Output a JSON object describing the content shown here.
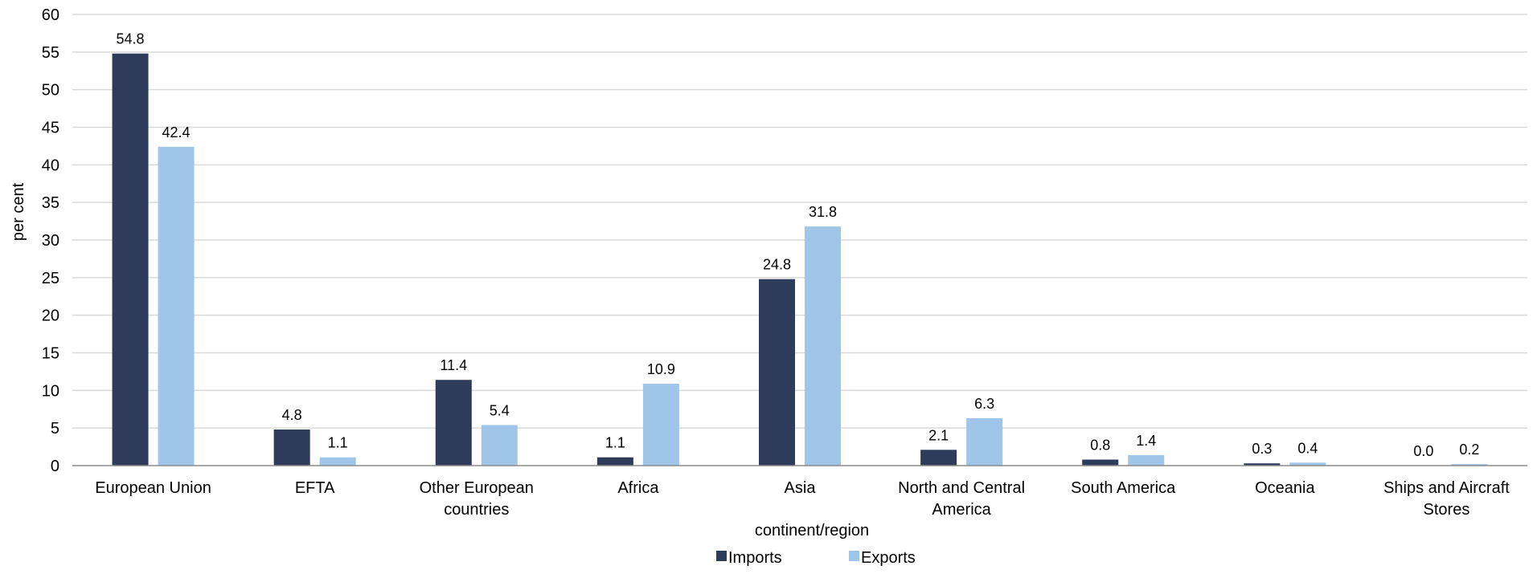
{
  "chart_data": {
    "type": "bar",
    "categories": [
      "European Union",
      "EFTA",
      "Other European countries",
      "Africa",
      "Asia",
      "North and Central America",
      "South America",
      "Oceania",
      "Ships and Aircraft Stores"
    ],
    "category_lines": [
      [
        "European Union"
      ],
      [
        "EFTA"
      ],
      [
        "Other European",
        "countries"
      ],
      [
        "Africa"
      ],
      [
        "Asia"
      ],
      [
        "North and Central",
        "America"
      ],
      [
        "South America"
      ],
      [
        "Oceania"
      ],
      [
        "Ships and Aircraft",
        "Stores"
      ]
    ],
    "series": [
      {
        "name": "Imports",
        "color": "#2e3b5a",
        "values": [
          54.8,
          4.8,
          11.4,
          1.1,
          24.8,
          2.1,
          0.8,
          0.3,
          0.0
        ],
        "labels": [
          "54.8",
          "4.8",
          "11.4",
          "1.1",
          "24.8",
          "2.1",
          "0.8",
          "0.3",
          "0.0"
        ]
      },
      {
        "name": "Exports",
        "color": "#9fc5e8",
        "values": [
          42.4,
          1.1,
          5.4,
          10.9,
          31.8,
          6.3,
          1.4,
          0.4,
          0.2
        ],
        "labels": [
          "42.4",
          "1.1",
          "5.4",
          "10.9",
          "31.8",
          "6.3",
          "1.4",
          "0.4",
          "0.2"
        ]
      }
    ],
    "xlabel": "continent/region",
    "ylabel": "per cent",
    "ylim": [
      0,
      60
    ],
    "yticks": [
      "0",
      "5",
      "10",
      "15",
      "20",
      "25",
      "30",
      "35",
      "40",
      "45",
      "50",
      "55",
      "60"
    ],
    "grid": true,
    "legend": "bottom"
  }
}
